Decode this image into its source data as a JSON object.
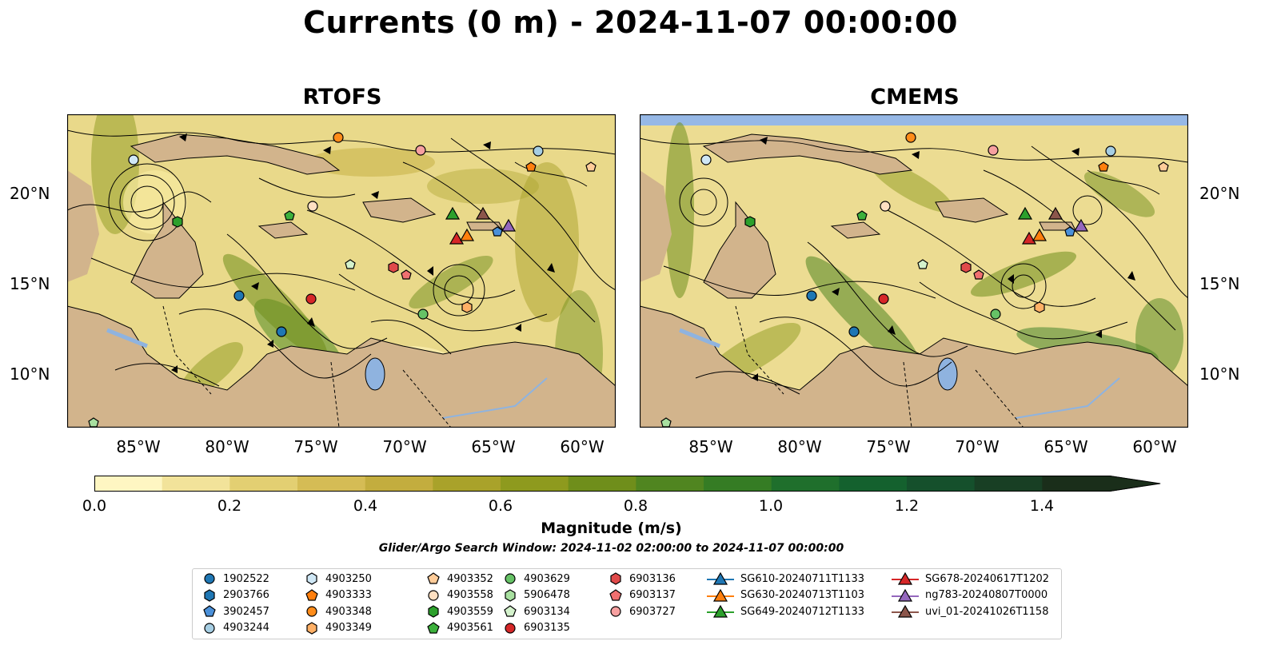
{
  "title": "Currents (0 m) - 2024-11-07 00:00:00",
  "panels": [
    {
      "title": "RTOFS"
    },
    {
      "title": "CMEMS"
    }
  ],
  "axes": {
    "lat_labels": [
      "20°N",
      "15°N",
      "10°N"
    ],
    "lon_labels": [
      "85°W",
      "80°W",
      "75°W",
      "70°W",
      "65°W",
      "60°W"
    ]
  },
  "colorbar": {
    "label": "Magnitude (m/s)",
    "ticks": [
      "0.0",
      "0.2",
      "0.4",
      "0.6",
      "0.8",
      "1.0",
      "1.2",
      "1.4"
    ],
    "colors": [
      "#fef6c2",
      "#f2e39a",
      "#e3cf72",
      "#d5bc55",
      "#c3ad3e",
      "#a9a22a",
      "#8e9a1e",
      "#6f8e1b",
      "#508520",
      "#357c24",
      "#1f6f2c",
      "#14612e",
      "#15502c",
      "#183f24",
      "#1a2e1a"
    ]
  },
  "search_window": "Glider/Argo Search Window: 2024-11-02 02:00:00 to 2024-11-07 00:00:00",
  "legend": {
    "columns": [
      [
        {
          "label": "1902522",
          "marker": "circle",
          "color": "#1f77b4"
        },
        {
          "label": "2903766",
          "marker": "hexagon",
          "color": "#1f77b4"
        },
        {
          "label": "3902457",
          "marker": "pentagon",
          "color": "#4a90d9"
        },
        {
          "label": "4903244",
          "marker": "circle",
          "color": "#a6cee3"
        }
      ],
      [
        {
          "label": "4903250",
          "marker": "hexagon",
          "color": "#cfe7f5"
        },
        {
          "label": "4903333",
          "marker": "pentagon",
          "color": "#ff7f0e"
        },
        {
          "label": "4903348",
          "marker": "circle",
          "color": "#ff8c1a"
        },
        {
          "label": "4903349",
          "marker": "hexagon",
          "color": "#ffb066"
        }
      ],
      [
        {
          "label": "4903352",
          "marker": "pentagon",
          "color": "#ffcc99"
        },
        {
          "label": "4903558",
          "marker": "circle",
          "color": "#ffe0c2"
        },
        {
          "label": "4903559",
          "marker": "hexagon",
          "color": "#2ca02c"
        },
        {
          "label": "4903561",
          "marker": "pentagon",
          "color": "#3cb03c"
        }
      ],
      [
        {
          "label": "4903629",
          "marker": "circle",
          "color": "#66c266"
        },
        {
          "label": "5906478",
          "marker": "hexagon",
          "color": "#a8e0a0"
        },
        {
          "label": "6903134",
          "marker": "pentagon",
          "color": "#d4f2cc"
        },
        {
          "label": "6903135",
          "marker": "circle",
          "color": "#d62728"
        }
      ],
      [
        {
          "label": "6903136",
          "marker": "hexagon",
          "color": "#e04a4a"
        },
        {
          "label": "6903137",
          "marker": "pentagon",
          "color": "#f07070"
        },
        {
          "label": "6903727",
          "marker": "circle",
          "color": "#f7a0a0"
        }
      ],
      [
        {
          "label": "SG610-20240711T1133",
          "marker": "triangle",
          "color": "#1f77b4"
        },
        {
          "label": "SG630-20240713T1103",
          "marker": "triangle",
          "color": "#ff7f0e"
        },
        {
          "label": "SG649-20240712T1133",
          "marker": "triangle",
          "color": "#2ca02c"
        }
      ],
      [
        {
          "label": "SG678-20240617T1202",
          "marker": "triangle",
          "color": "#d62728"
        },
        {
          "label": "ng783-20240807T0000",
          "marker": "triangle",
          "color": "#9467bd"
        },
        {
          "label": "uvi_01-20241026T1158",
          "marker": "triangle",
          "color": "#8c564b"
        }
      ]
    ]
  },
  "map_colors": {
    "land": "#d2b48c",
    "lake": "#8fb3df",
    "no_data": "#96b8e6"
  }
}
